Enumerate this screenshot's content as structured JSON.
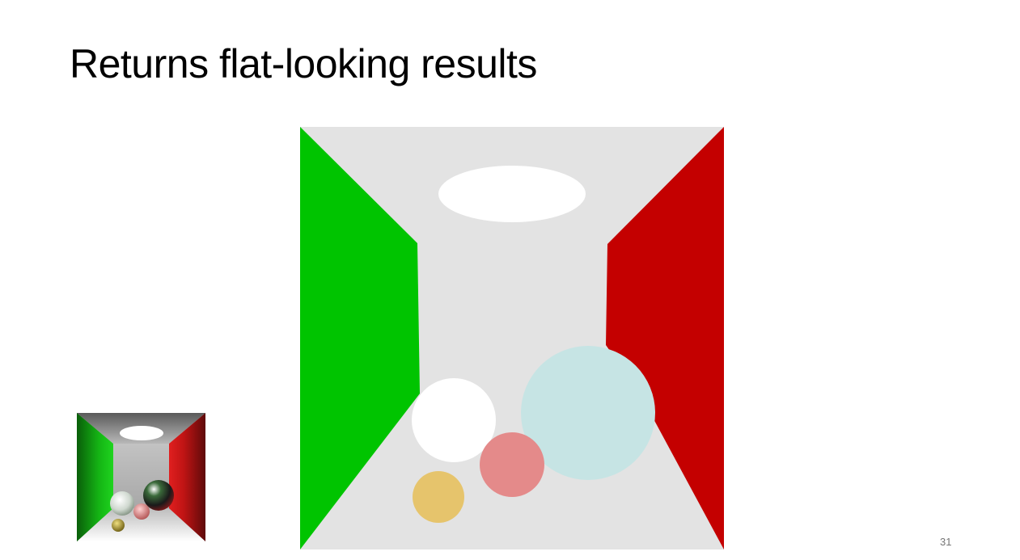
{
  "slide": {
    "title": "Returns flat-looking results",
    "page_number": "31"
  },
  "colors": {
    "background_wall": "#e3e3e3",
    "left_wall": "#00c400",
    "right_wall": "#c40000",
    "ceiling_light": "#ffffff",
    "sphere_white": "#ffffff",
    "sphere_cyan": "#c6e4e4",
    "sphere_pink": "#e48a8a",
    "sphere_gold": "#e6c46c"
  }
}
